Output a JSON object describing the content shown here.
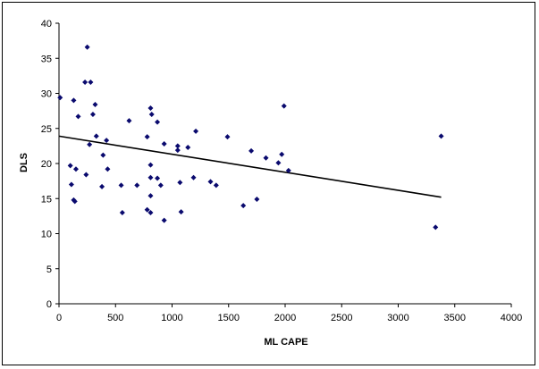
{
  "chart_data": {
    "type": "scatter",
    "title": "",
    "xlabel": "ML CAPE",
    "ylabel": "DLS",
    "xlim": [
      0,
      4000
    ],
    "ylim": [
      0,
      40
    ],
    "x_ticks": [
      0,
      500,
      1000,
      1500,
      2000,
      2500,
      3000,
      3500,
      4000
    ],
    "y_ticks": [
      0,
      5,
      10,
      15,
      20,
      25,
      30,
      35,
      40
    ],
    "grid": false,
    "legend": "none",
    "marker": "diamond",
    "marker_color": "#0a0a6e",
    "trendline": {
      "type": "linear",
      "color": "#000000",
      "x": [
        0,
        3380
      ],
      "y": [
        23.9,
        15.2
      ]
    },
    "points": [
      {
        "x": 10,
        "y": 29.4
      },
      {
        "x": 250,
        "y": 36.6
      },
      {
        "x": 230,
        "y": 31.6
      },
      {
        "x": 280,
        "y": 31.6
      },
      {
        "x": 130,
        "y": 29.0
      },
      {
        "x": 320,
        "y": 28.4
      },
      {
        "x": 170,
        "y": 26.7
      },
      {
        "x": 300,
        "y": 27.0
      },
      {
        "x": 270,
        "y": 22.7
      },
      {
        "x": 330,
        "y": 23.9
      },
      {
        "x": 420,
        "y": 23.3
      },
      {
        "x": 390,
        "y": 21.2
      },
      {
        "x": 100,
        "y": 19.7
      },
      {
        "x": 150,
        "y": 19.2
      },
      {
        "x": 240,
        "y": 18.4
      },
      {
        "x": 430,
        "y": 19.2
      },
      {
        "x": 110,
        "y": 17.0
      },
      {
        "x": 130,
        "y": 14.8
      },
      {
        "x": 140,
        "y": 14.6
      },
      {
        "x": 380,
        "y": 16.7
      },
      {
        "x": 550,
        "y": 16.9
      },
      {
        "x": 560,
        "y": 13.0
      },
      {
        "x": 620,
        "y": 26.1
      },
      {
        "x": 690,
        "y": 16.9
      },
      {
        "x": 780,
        "y": 23.8
      },
      {
        "x": 810,
        "y": 27.9
      },
      {
        "x": 820,
        "y": 27.0
      },
      {
        "x": 870,
        "y": 25.9
      },
      {
        "x": 810,
        "y": 19.8
      },
      {
        "x": 810,
        "y": 18.0
      },
      {
        "x": 870,
        "y": 17.9
      },
      {
        "x": 900,
        "y": 16.9
      },
      {
        "x": 810,
        "y": 15.4
      },
      {
        "x": 780,
        "y": 13.4
      },
      {
        "x": 810,
        "y": 13.0
      },
      {
        "x": 930,
        "y": 11.9
      },
      {
        "x": 930,
        "y": 22.8
      },
      {
        "x": 1050,
        "y": 22.5
      },
      {
        "x": 1050,
        "y": 21.9
      },
      {
        "x": 1140,
        "y": 22.3
      },
      {
        "x": 1210,
        "y": 24.6
      },
      {
        "x": 1070,
        "y": 17.3
      },
      {
        "x": 1190,
        "y": 18.0
      },
      {
        "x": 1080,
        "y": 13.1
      },
      {
        "x": 1340,
        "y": 17.4
      },
      {
        "x": 1390,
        "y": 16.9
      },
      {
        "x": 1490,
        "y": 23.8
      },
      {
        "x": 1630,
        "y": 14.0
      },
      {
        "x": 1700,
        "y": 21.8
      },
      {
        "x": 1750,
        "y": 14.9
      },
      {
        "x": 1830,
        "y": 20.8
      },
      {
        "x": 1940,
        "y": 20.1
      },
      {
        "x": 1970,
        "y": 21.3
      },
      {
        "x": 1990,
        "y": 28.2
      },
      {
        "x": 2030,
        "y": 19.0
      },
      {
        "x": 3330,
        "y": 10.9
      },
      {
        "x": 3380,
        "y": 23.9
      }
    ]
  }
}
